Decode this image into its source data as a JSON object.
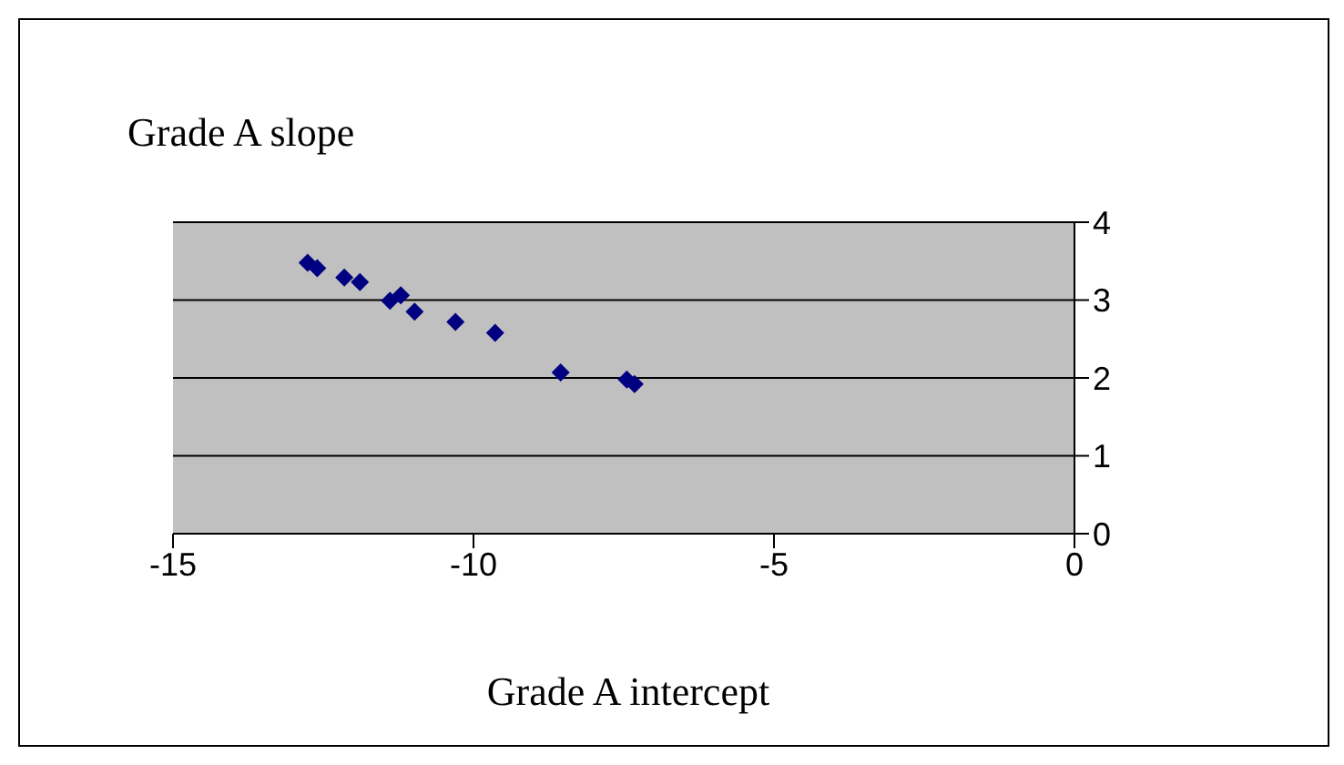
{
  "chart_data": {
    "type": "scatter",
    "xlabel": "Grade A intercept",
    "ylabel": "Grade A slope",
    "x": [
      -12.76,
      -12.6,
      -12.15,
      -11.89,
      -11.39,
      -11.21,
      -10.98,
      -10.3,
      -9.64,
      -8.55,
      -7.45,
      -7.32
    ],
    "values": [
      3.48,
      3.41,
      3.29,
      3.23,
      2.99,
      3.06,
      2.85,
      2.72,
      2.58,
      2.07,
      1.98,
      1.92
    ],
    "color": "#000080",
    "marker": "diamond",
    "grid": "y",
    "legend": false,
    "xlim": [
      -15,
      0
    ],
    "xticks": [
      -15,
      -10,
      -5,
      0
    ],
    "ylim": [
      0,
      4
    ],
    "yticks": [
      0,
      1,
      2,
      3,
      4
    ]
  }
}
